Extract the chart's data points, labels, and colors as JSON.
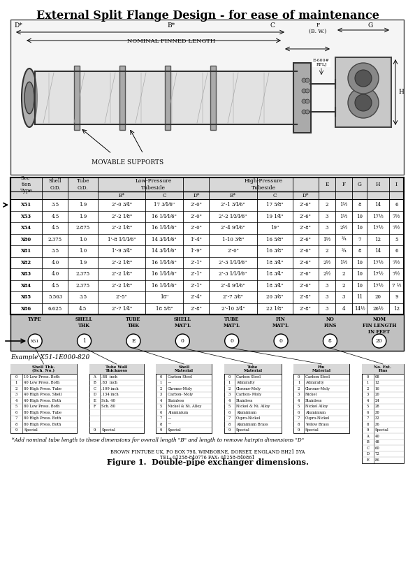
{
  "title": "External Split Flange Design - for ease of maintenance",
  "bg_color": "#ffffff",
  "table_rows": [
    [
      "X51",
      "3.5",
      "1.9",
      "2’-0 3⁄4\"",
      "17 3⁄1⁄6\"",
      "2’-0\"",
      "2’-1 3⁄1⁄6\"",
      "17 5⁄8\"",
      "2’-6\"",
      "2",
      "1½",
      "8",
      "14",
      "6"
    ],
    [
      "X53",
      "4.5",
      "1.9",
      "2’-2 1⁄8\"",
      "16 1⁄1⁄1⁄6\"",
      "2’-0\"",
      "2’-2 1⁄3⁄1⁄6\"",
      "19 1⁄4\"",
      "2’-6\"",
      "3",
      "1½",
      "10",
      "17½",
      "7½"
    ],
    [
      "X54",
      "4.5",
      "2.875",
      "2’-2 1⁄8\"",
      "16 1⁄1⁄1⁄6\"",
      "2’-0\"",
      "2’-4 9⁄1⁄6\"",
      "19\"",
      "2’-8\"",
      "3",
      "2½",
      "10",
      "17½",
      "7½"
    ],
    [
      "X80",
      "2.375",
      "1.0",
      "1’-8 1⁄1⁄1⁄6\"",
      "14 3⁄1⁄1⁄6\"",
      "1’-4\"",
      "1-10 3⁄8\"",
      "16 5⁄8\"",
      "2’-6\"",
      "1½",
      "¾",
      "7",
      "12",
      "5"
    ],
    [
      "X81",
      "3.5",
      "1.0",
      "1’-9 3⁄4\"",
      "14 3⁄1⁄1⁄6\"",
      "1’-9\"",
      "2’-0\"",
      "16 3⁄8\"",
      "2’-6\"",
      "2",
      "¾",
      "8",
      "14",
      "6"
    ],
    [
      "X82",
      "4.0",
      "1.9",
      "2’-2 1⁄8\"",
      "16 1⁄1⁄1⁄6\"",
      "2’-1\"",
      "2’-3 1⁄1⁄1⁄6\"",
      "18 3⁄4\"",
      "2’-6\"",
      "2½",
      "1½",
      "10",
      "17½",
      "7½"
    ],
    [
      "X83",
      "4.0",
      "2.375",
      "2’-2 1⁄8\"",
      "16 1⁄1⁄1⁄6\"",
      "2’-1\"",
      "2’-3 1⁄1⁄1⁄6\"",
      "18 3⁄4\"",
      "2’-6\"",
      "2½",
      "2",
      "10",
      "17½",
      "7½"
    ],
    [
      "X84",
      "4.5",
      "2.375",
      "2’-2 1⁄8\"",
      "16 1⁄1⁄1⁄6\"",
      "2’-1\"",
      "2’-4 9⁄1⁄6\"",
      "18 3⁄4\"",
      "2’-6\"",
      "3",
      "2",
      "10",
      "17½",
      "7 ½"
    ],
    [
      "X85",
      "5.563",
      "3.5",
      "2’-5\"",
      "18\"",
      "2’-4\"",
      "2’-7 3⁄8\"",
      "20 3⁄8\"",
      "2’-8\"",
      "3",
      "3",
      "11",
      "20",
      "9"
    ],
    [
      "X86",
      "6.625",
      "4.5",
      "2’-7 1⁄4\"",
      "18 5⁄8\"",
      "2’-8\"",
      "2’-10 3⁄4\"",
      "22 1⁄8\"",
      "2’-8\"",
      "3",
      "4",
      "14½",
      "26½",
      "12"
    ]
  ],
  "footnote": "*Add nominal tube length to these dimensions for overall length \"B\" and length to remove hairpin dimensions \"D\"",
  "figure_caption": "Figure 1.  Double-pipe exchanger dimensions.",
  "company_info": "BROWN FINTUBE UK, PO BOX 798, WIMBORNE, DORSET, ENGLAND BH21 5YA\nTEL: 01258-840776 FAX: 01258-840861",
  "example_label": "Example X51-1E000-820",
  "model_parts": [
    "TYPE",
    "SHELL\nTHK",
    "TUBE\nTHK",
    "SHELL\nMAT'L",
    "TUBE\nMAT'L",
    "FIN\nMAT'L",
    "NO\nFINS",
    "NOM\nFIN LENGTH\nIN FEET"
  ],
  "model_values": [
    "X51",
    "1",
    "E",
    "0",
    "0",
    "0",
    "8",
    "20"
  ],
  "shell_thk_rows": [
    [
      "0",
      "10 Low Press. Both"
    ],
    [
      "1",
      "40 Low Press. Both"
    ],
    [
      "2",
      "80 High Press. Tube"
    ],
    [
      "3",
      "40 High Press. Shell"
    ],
    [
      "4",
      "40 High Press. Both"
    ],
    [
      "5",
      "80 Low Press. Both"
    ],
    [
      "6",
      "80 High Press. Tube"
    ],
    [
      "7",
      "80 High Press. Both"
    ],
    [
      "8",
      "80 High Press. Both"
    ],
    [
      "9",
      "Special"
    ]
  ],
  "tube_thk_rows": [
    [
      "A",
      ".88  inch"
    ],
    [
      "B",
      ".83  inch"
    ],
    [
      "C",
      ".109 inch"
    ],
    [
      "D",
      ".134 inch"
    ],
    [
      "E",
      "Sch. 40"
    ],
    [
      "F",
      "Sch. 80"
    ],
    [
      "",
      ""
    ],
    [
      "",
      ""
    ],
    [
      "",
      ""
    ],
    [
      "9",
      "Special"
    ]
  ],
  "shell_matl_rows": [
    [
      "0",
      "Carbon Steel"
    ],
    [
      "1",
      "—"
    ],
    [
      "2",
      "Chrome-Moly"
    ],
    [
      "3",
      "Carbon- Moly"
    ],
    [
      "4",
      "Stainless"
    ],
    [
      "5",
      "Nickel & Ni. Alloy"
    ],
    [
      "6",
      "Aluminium"
    ],
    [
      "7",
      "—"
    ],
    [
      "8",
      "—"
    ],
    [
      "9",
      "Special"
    ]
  ],
  "tube_matl_rows": [
    [
      "0",
      "Carbon Steel"
    ],
    [
      "1",
      "Admiralty"
    ],
    [
      "2",
      "Chrome-Moly"
    ],
    [
      "3",
      "Carbon- Moly"
    ],
    [
      "4",
      "Stainless"
    ],
    [
      "5",
      "Nickel & Ni. Alloy"
    ],
    [
      "6",
      "Aluminium"
    ],
    [
      "7",
      "Cupro-Nickel"
    ],
    [
      "8",
      "Aluminium Brass"
    ],
    [
      "9",
      "Special"
    ]
  ],
  "fin_matl_rows": [
    [
      "0",
      "Carbon Steel"
    ],
    [
      "1",
      "Admiralty"
    ],
    [
      "2",
      "Chrome-Moly"
    ],
    [
      "3",
      "Nickel"
    ],
    [
      "4",
      "Stainless"
    ],
    [
      "5",
      "Nickel Alloy"
    ],
    [
      "6",
      "Aluminium"
    ],
    [
      "7",
      "Cupro-Nickel"
    ],
    [
      "8",
      "Yellow Brass"
    ],
    [
      "9",
      "Special"
    ]
  ],
  "no_fins_rows": [
    [
      "0",
      "08"
    ],
    [
      "1",
      "12"
    ],
    [
      "2",
      "16"
    ],
    [
      "3",
      "20"
    ],
    [
      "4",
      "24"
    ],
    [
      "5",
      "28"
    ],
    [
      "6",
      "30"
    ],
    [
      "7",
      "32"
    ],
    [
      "8",
      "36"
    ],
    [
      "9",
      "Special"
    ],
    [
      "A",
      "40"
    ],
    [
      "B",
      "48"
    ],
    [
      "C",
      "60"
    ],
    [
      "D",
      "72"
    ],
    [
      "E",
      "86"
    ]
  ]
}
